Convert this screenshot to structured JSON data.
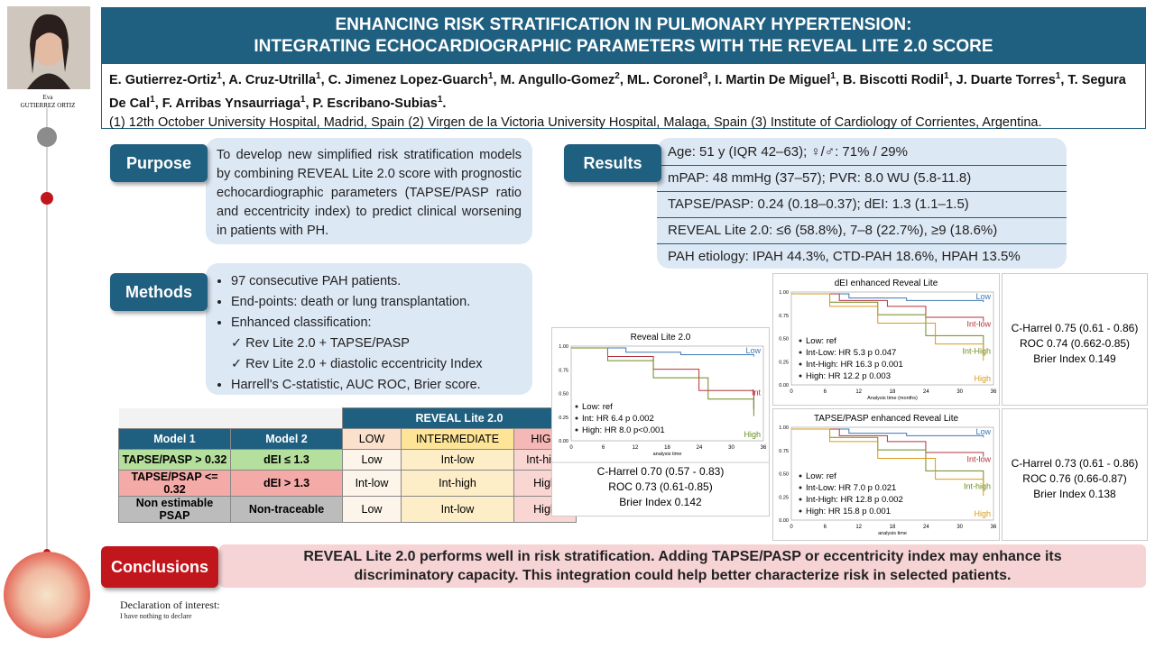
{
  "sidebar": {
    "name": "Eva",
    "surname": "GUTIERREZ ORTIZ"
  },
  "header": {
    "title_line1": "ENHANCING RISK STRATIFICATION IN PULMONARY HYPERTENSION:",
    "title_line2": "INTEGRATING ECHOCARDIOGRAPHIC PARAMETERS WITH THE REVEAL LITE 2.0 SCORE",
    "authors": [
      {
        "name": "E. Gutierrez-Ortiz",
        "sup": "1",
        "sep": ","
      },
      {
        "name": "A. Cruz-Utrilla",
        "sup": "1",
        "sep": ","
      },
      {
        "name": "C. Jimenez Lopez-Guarch",
        "sup": "1",
        "sep": ","
      },
      {
        "name": "M. Angullo-Gomez",
        "sup": "2",
        "sep": ","
      },
      {
        "name": "ML. Coronel",
        "sup": "3",
        "sep": ","
      },
      {
        "name": "I. Martin De Miguel",
        "sup": "1",
        "sep": ","
      },
      {
        "name": "B. Biscotti Rodil",
        "sup": "1",
        "sep": ","
      },
      {
        "name": "J. Duarte Torres",
        "sup": "1",
        "sep": ","
      },
      {
        "name": "T. Segura De Cal",
        "sup": "1",
        "sep": ","
      },
      {
        "name": "F. Arribas Ynsaurriaga",
        "sup": "1",
        "sep": ","
      },
      {
        "name": "P. Escribano-Subias",
        "sup": "1",
        "sep": "."
      }
    ],
    "affiliations": "(1) 12th October University Hospital, Madrid, Spain (2) Virgen de la Victoria University Hospital, Malaga, Spain (3) Institute of Cardiology of Corrientes, Argentina."
  },
  "purpose": {
    "label": "Purpose",
    "text": "To develop new simplified risk stratification models by combining REVEAL Lite 2.0 score with prognostic echocardiographic parameters (TAPSE/PASP ratio and eccentricity index) to predict clinical worsening in patients with PH."
  },
  "methods": {
    "label": "Methods",
    "items": [
      "97 consecutive PAH patients.",
      "End-points: death or lung transplantation.",
      "Enhanced classification:",
      "Harrell's C-statistic, AUC ROC, Brier score."
    ],
    "subitems": [
      "✓ Rev Lite 2.0 + TAPSE/PASP",
      "✓ Rev Lite 2.0 + diastolic eccentricity Index"
    ]
  },
  "results": {
    "label": "Results",
    "items": [
      "Age: 51 y (IQR 42–63); ♀/♂: 71% / 29%",
      "mPAP: 48 mmHg (37–57); PVR: 8.0 WU (5.8-11.8)",
      "TAPSE/PASP: 0.24 (0.18–0.37); dEI: 1.3 (1.1–1.5)",
      "REVEAL Lite 2.0: ≤6 (58.8%), 7–8 (22.7%), ≥9 (18.6%)",
      "PAH etiology: IPAH 44.3%, CTD-PAH 18.6%, HPAH 13.5%"
    ]
  },
  "table": {
    "group_header": "REVEAL Lite 2.0",
    "headers": [
      "Model 1",
      "Model 2",
      "LOW",
      "INTERMEDIATE",
      "HIGH"
    ],
    "rows": [
      [
        "TAPSE/PASP > 0.32",
        "dEI ≤ 1.3",
        "Low",
        "Int-low",
        "Int-high"
      ],
      [
        "TAPSE/PSAP <= 0.32",
        "dEI > 1.3",
        "Int-low",
        "Int-high",
        "High"
      ],
      [
        "Non estimable PSAP",
        "Non-traceable",
        "Low",
        "Int-low",
        "High"
      ]
    ],
    "row_colors": [
      "#b5df9c",
      "#f4aaa6",
      "#bcbcbc"
    ],
    "header_colors": [
      "#fbe0cc",
      "#fde496",
      "#f5b8b6"
    ],
    "column_colors": [
      "#fdf4ea",
      "#fdeec8",
      "#f9d6d2"
    ]
  },
  "km_plots": [
    {
      "title": "Reveal Lite 2.0",
      "curve_labels": [
        "Low",
        "Int",
        "High"
      ],
      "curve_colors": [
        "#3d78b4",
        "#b3333a",
        "#6b8b1f"
      ],
      "legend": [
        "Low: ref",
        "Int: HR 6.4 p 0.002",
        "High: HR 8.0 p<0.001"
      ],
      "stats": [
        "C-Harrel 0.70 (0.57 - 0.83)",
        "ROC 0.73 (0.61-0.85)",
        "Brier Index  0.142"
      ],
      "x_label": "analysis time"
    },
    {
      "title": "dEI enhanced Reveal Lite",
      "curve_labels": [
        "Low",
        "Int-low",
        "Int-High",
        "High"
      ],
      "curve_colors": [
        "#3d78b4",
        "#b3333a",
        "#6b8b1f",
        "#d99a1a"
      ],
      "legend": [
        "Low: ref",
        "Int-Low: HR 5.3 p 0.047",
        "Int-High: HR 16.3 p 0.001",
        "High: HR 12.2 p 0.003"
      ],
      "stats": [
        "C-Harrel 0.75 (0.61 - 0.86)",
        "ROC 0.74 (0.662-0.85)",
        "Brier Index  0.149"
      ],
      "x_label": "Analysis time (months)"
    },
    {
      "title": "TAPSE/PASP enhanced Reveal Lite",
      "curve_labels": [
        "Low",
        "Int-low",
        "Int-high",
        "High"
      ],
      "curve_colors": [
        "#3d78b4",
        "#b3333a",
        "#6b8b1f",
        "#d99a1a"
      ],
      "legend": [
        "Low: ref",
        "Int-Low: HR 7.0 p 0.021",
        "Int-High: HR 12.8 p 0.002",
        "High: HR 15.8 p 0.001"
      ],
      "stats": [
        "C-Harrel 0.73 (0.61 - 0.86)",
        "ROC 0.76 (0.66-0.87)",
        "Brier Index  0.138"
      ],
      "x_label": "analysis time"
    }
  ],
  "km_x_ticks": [
    "0",
    "6",
    "12",
    "18",
    "24",
    "30",
    "36"
  ],
  "km_y_ticks": [
    "1.00",
    "0.75",
    "0.50",
    "0.25",
    "0.00"
  ],
  "conclusions": {
    "label": "Conclusions",
    "text": "REVEAL Lite 2.0 performs well in risk stratification. Adding TAPSE/PASP or eccentricity index may enhance its discriminatory capacity. This integration could help better characterize risk in selected patients."
  },
  "declaration": {
    "title": "Declaration of interest:",
    "text": "I have nothing to declare"
  }
}
